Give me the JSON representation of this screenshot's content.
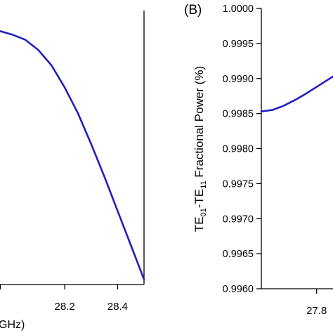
{
  "chart_data": [
    {
      "panel": "left",
      "type": "line",
      "title": "",
      "xlabel": "GHz)",
      "ylabel": "",
      "xlim": [
        27.955,
        28.5
      ],
      "ylim": [
        0.99525,
        0.99685
      ],
      "x_ticks": [
        "28.2",
        "28.4"
      ],
      "x_tick_values": [
        28.2,
        28.4
      ],
      "grid": false,
      "series": [
        {
          "color": "#1f1fbf",
          "x": [
            27.955,
            28.0,
            28.05,
            28.1,
            28.15,
            28.2,
            28.25,
            28.3,
            28.35,
            28.4,
            28.45,
            28.5
          ],
          "y": [
            0.99673,
            0.99671,
            0.99668,
            0.99662,
            0.99653,
            0.9964,
            0.99625,
            0.99607,
            0.99588,
            0.99568,
            0.99548,
            0.99528
          ]
        }
      ]
    },
    {
      "panel": "right",
      "type": "line",
      "label": "(B)",
      "title": "",
      "xlabel": "",
      "ylabel_parts": [
        "TE",
        "01",
        "-TE",
        "11",
        " Fractional Power (%)"
      ],
      "xlim": [
        27.7,
        28.0
      ],
      "ylim": [
        0.996,
        1.0
      ],
      "x_ticks": [
        "27.8"
      ],
      "x_tick_values": [
        27.8
      ],
      "y_ticks": [
        "0.9960",
        "0.9965",
        "0.9970",
        "0.9975",
        "0.9980",
        "0.9985",
        "0.9990",
        "0.9995",
        "1.0000"
      ],
      "y_tick_values": [
        0.996,
        0.9965,
        0.997,
        0.9975,
        0.998,
        0.9985,
        0.999,
        0.9995,
        1.0
      ],
      "grid": false,
      "series": [
        {
          "color": "#1f1fbf",
          "x": [
            27.7,
            27.72,
            27.74,
            27.76,
            27.78,
            27.8,
            27.82,
            27.84,
            27.86,
            27.88,
            27.9
          ],
          "y": [
            0.99853,
            0.99855,
            0.99861,
            0.99869,
            0.99878,
            0.99888,
            0.99898,
            0.99908,
            0.99917,
            0.99926,
            0.99934
          ]
        }
      ]
    }
  ]
}
